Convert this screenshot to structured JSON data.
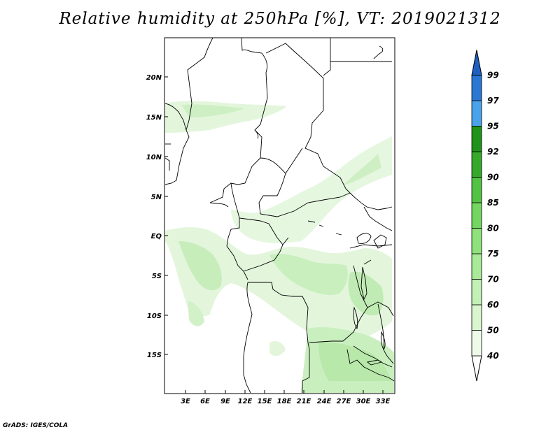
{
  "title": "Relative humidity at 250hPa [%], VT: 2019021312",
  "credit": "GrADS: IGES/COLA",
  "lat_labels": [
    "20N",
    "15N",
    "10N",
    "5N",
    "EQ",
    "5S",
    "10S",
    "15S"
  ],
  "lon_labels": [
    "3E",
    "6E",
    "9E",
    "12E",
    "15E",
    "18E",
    "21E",
    "24E",
    "27E",
    "30E",
    "33E"
  ],
  "colorbar": {
    "labels": [
      "40",
      "50",
      "60",
      "70",
      "75",
      "80",
      "85",
      "90",
      "92",
      "95",
      "97",
      "99"
    ],
    "colors": [
      "#ffffff",
      "#eefbe9",
      "#d9f6cf",
      "#c2f0b5",
      "#a9ea99",
      "#8ee17b",
      "#73d660",
      "#52c243",
      "#36a92b",
      "#1f9219",
      "#4aa3ea",
      "#2a77d4",
      "#1f5fc0"
    ]
  },
  "colors": {
    "coast": "#000000",
    "shading_light": "#e6f7e0",
    "shading_mid": "#c9efbf",
    "shading_dark": "#b4e8a6"
  }
}
